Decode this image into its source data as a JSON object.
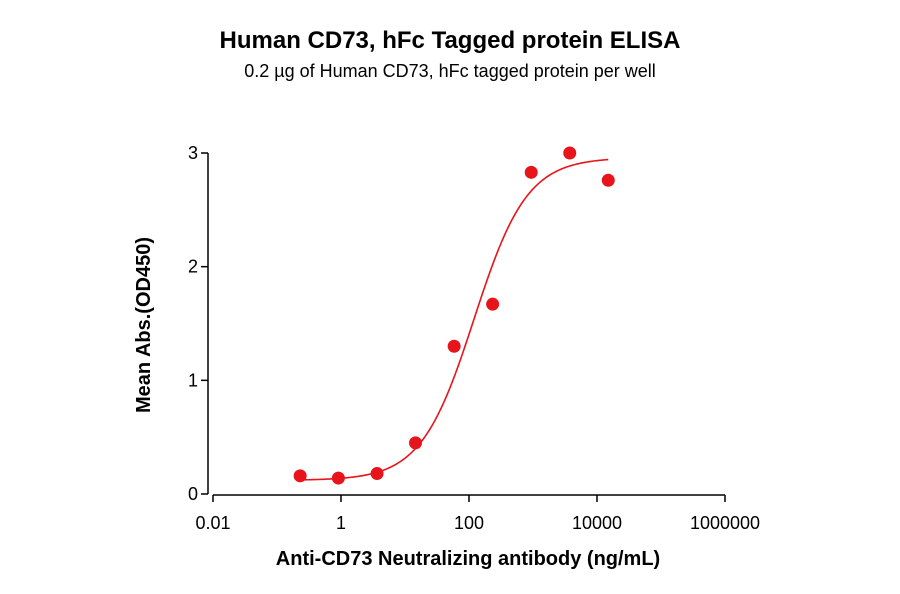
{
  "chart_data": {
    "type": "scatter",
    "title": "Human CD73, hFc Tagged protein ELISA",
    "subtitle": "0.2 µg of Human CD73, hFc tagged protein per well",
    "xlabel": "Anti-CD73 Neutralizing antibody (ng/mL)",
    "ylabel": "Mean Abs.(OD450)",
    "x_scale": "log",
    "xlim": [
      0.01,
      1000000
    ],
    "ylim": [
      0,
      3
    ],
    "x_ticks": [
      0.01,
      1,
      100,
      10000,
      1000000
    ],
    "x_tick_labels": [
      "0.01",
      "1",
      "100",
      "10000",
      "1000000"
    ],
    "y_ticks": [
      0,
      1,
      2,
      3
    ],
    "y_tick_labels": [
      "0",
      "1",
      "2",
      "3"
    ],
    "grid": false,
    "legend": "none",
    "series": [
      {
        "color": "#e8141b",
        "points": [
          {
            "x": 0.23,
            "y": 0.16
          },
          {
            "x": 0.91,
            "y": 0.14
          },
          {
            "x": 3.66,
            "y": 0.18
          },
          {
            "x": 14.6,
            "y": 0.45
          },
          {
            "x": 58.6,
            "y": 1.3
          },
          {
            "x": 234,
            "y": 1.67
          },
          {
            "x": 938,
            "y": 2.83
          },
          {
            "x": 3750,
            "y": 3.0
          },
          {
            "x": 15000,
            "y": 2.76
          }
        ],
        "fit": {
          "model": "4PL",
          "bottom": 0.12,
          "top": 2.96,
          "ec50": 120,
          "hill": 1.05,
          "x_range": [
            0.23,
            15000
          ]
        }
      }
    ]
  }
}
